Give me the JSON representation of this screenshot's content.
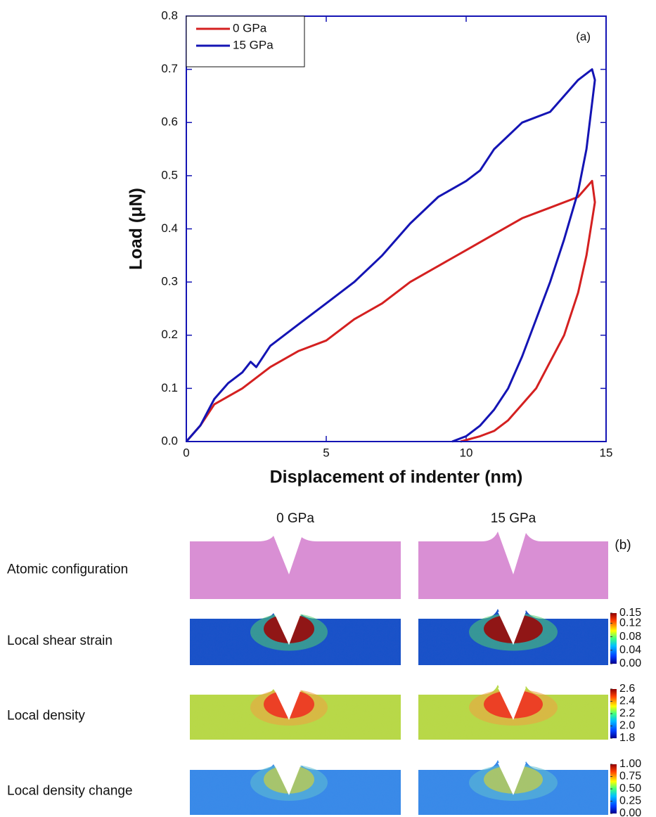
{
  "chart_data": {
    "type": "line",
    "annotation": "(a)",
    "xlabel": "Displacement of indenter (nm)",
    "ylabel": "Load (μN)",
    "xlim": [
      0,
      15
    ],
    "xticks": [
      0,
      5,
      10,
      15
    ],
    "ylim": [
      0,
      0.8
    ],
    "yticks": [
      {
        "value": 0,
        "label": "0.0"
      },
      0.1,
      0.2,
      0.3,
      0.4,
      0.5,
      0.6,
      0.7,
      0.8
    ],
    "legend": "upper left",
    "series": [
      {
        "name": "0 GPa",
        "color": "#d42020",
        "x": [
          0,
          0.5,
          1,
          2,
          3,
          4,
          5,
          6,
          7,
          8,
          9,
          10,
          11,
          12,
          13,
          14,
          14.5,
          14.6,
          14.3,
          14,
          13.5,
          13,
          12.5,
          12,
          11.5,
          11,
          10.5,
          9.8
        ],
        "values": [
          0,
          0.03,
          0.07,
          0.1,
          0.14,
          0.17,
          0.19,
          0.23,
          0.26,
          0.3,
          0.33,
          0.36,
          0.39,
          0.42,
          0.44,
          0.46,
          0.49,
          0.45,
          0.35,
          0.28,
          0.2,
          0.15,
          0.1,
          0.07,
          0.04,
          0.02,
          0.01,
          0
        ]
      },
      {
        "name": "15 GPa",
        "color": "#1414b4",
        "x": [
          0,
          0.5,
          1,
          1.5,
          2,
          2.3,
          2.5,
          3,
          4,
          5,
          6,
          7,
          8,
          9,
          10,
          10.5,
          11,
          12,
          13,
          14,
          14.5,
          14.6,
          14.3,
          14,
          13.5,
          13,
          12.5,
          12,
          11.5,
          11,
          10.5,
          10,
          9.5
        ],
        "values": [
          0,
          0.03,
          0.08,
          0.11,
          0.13,
          0.15,
          0.14,
          0.18,
          0.22,
          0.26,
          0.3,
          0.35,
          0.41,
          0.46,
          0.49,
          0.51,
          0.55,
          0.6,
          0.62,
          0.68,
          0.7,
          0.68,
          0.55,
          0.47,
          0.38,
          0.3,
          0.23,
          0.16,
          0.1,
          0.06,
          0.03,
          0.01,
          0
        ]
      }
    ]
  },
  "panel_b": {
    "label": "(b)",
    "columns": [
      "0 GPa",
      "15 GPa"
    ],
    "rows": [
      {
        "label": "Atomic configuration"
      },
      {
        "label": "Local shear strain",
        "colorbar_lim": [
          0,
          0.15
        ],
        "colorbar_ticks": [
          {
            "value": 0.15,
            "label": "0.15"
          },
          {
            "value": 0.12,
            "label": "0.12"
          },
          {
            "value": 0.08,
            "label": "0.08"
          },
          {
            "value": 0.04,
            "label": "0.04"
          },
          {
            "value": 0,
            "label": "0.00"
          }
        ]
      },
      {
        "label": "Local density",
        "colorbar_lim": [
          1.8,
          2.6
        ],
        "colorbar_ticks": [
          2.6,
          2.4,
          2.2,
          {
            "value": 2,
            "label": "2.0"
          },
          1.8
        ]
      },
      {
        "label": "Local density change",
        "colorbar_lim": [
          0,
          1
        ],
        "colorbar_ticks": [
          {
            "value": 1,
            "label": "1.00"
          },
          {
            "value": 0.75,
            "label": "0.75"
          },
          {
            "value": 0.5,
            "label": "0.50"
          },
          {
            "value": 0.25,
            "label": "0.25"
          },
          {
            "value": 0,
            "label": "0.00"
          }
        ]
      }
    ]
  }
}
